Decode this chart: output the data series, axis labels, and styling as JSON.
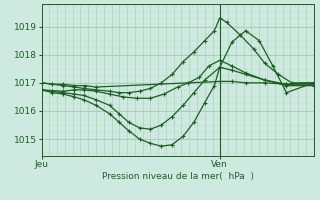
{
  "bg_color": "#ceeae0",
  "grid_color_major": "#a8c8b8",
  "grid_color_minor": "#b8d8c8",
  "line_color": "#1a6020",
  "xlabel": "Pression niveau de la mer(  hPa  )",
  "xtick_labels": [
    "Jeu",
    "Ven"
  ],
  "xtick_positions": [
    0.0,
    0.655
  ],
  "vline_x": 0.655,
  "ylabel_ticks": [
    1015,
    1016,
    1017,
    1018,
    1019
  ],
  "ylim": [
    1014.4,
    1019.8
  ],
  "xlim": [
    0.0,
    1.0
  ],
  "lines": [
    {
      "x": [
        0.0,
        0.04,
        0.08,
        0.12,
        0.16,
        0.2,
        0.655,
        0.7,
        0.75,
        0.82,
        0.9,
        1.0
      ],
      "y": [
        1017.0,
        1016.95,
        1016.95,
        1016.9,
        1016.9,
        1016.85,
        1017.05,
        1017.05,
        1017.0,
        1017.0,
        1016.95,
        1017.0
      ]
    },
    {
      "x": [
        0.0,
        0.04,
        0.08,
        0.12,
        0.155,
        0.2,
        0.25,
        0.3,
        0.35,
        0.4,
        0.45,
        0.5,
        0.54,
        0.58,
        0.615,
        0.655,
        0.7,
        0.75,
        0.82,
        0.9,
        1.0
      ],
      "y": [
        1016.75,
        1016.72,
        1016.7,
        1016.75,
        1016.75,
        1016.7,
        1016.6,
        1016.5,
        1016.45,
        1016.45,
        1016.6,
        1016.85,
        1017.0,
        1017.2,
        1017.6,
        1017.8,
        1017.6,
        1017.35,
        1017.1,
        1016.95,
        1016.95
      ]
    },
    {
      "x": [
        0.0,
        0.04,
        0.08,
        0.12,
        0.155,
        0.2,
        0.25,
        0.285,
        0.32,
        0.36,
        0.4,
        0.44,
        0.48,
        0.52,
        0.56,
        0.6,
        0.655,
        0.7,
        0.75,
        0.82,
        0.9,
        1.0
      ],
      "y": [
        1016.75,
        1016.7,
        1016.65,
        1016.6,
        1016.55,
        1016.4,
        1016.2,
        1015.9,
        1015.6,
        1015.4,
        1015.35,
        1015.5,
        1015.8,
        1016.2,
        1016.65,
        1017.1,
        1017.55,
        1017.45,
        1017.3,
        1017.1,
        1016.9,
        1016.9
      ]
    },
    {
      "x": [
        0.0,
        0.04,
        0.08,
        0.12,
        0.155,
        0.2,
        0.25,
        0.285,
        0.32,
        0.36,
        0.4,
        0.44,
        0.48,
        0.52,
        0.56,
        0.6,
        0.635,
        0.655,
        0.68,
        0.73,
        0.78,
        0.82,
        0.87,
        0.92,
        1.0
      ],
      "y": [
        1017.0,
        1016.95,
        1016.9,
        1016.85,
        1016.8,
        1016.75,
        1016.7,
        1016.65,
        1016.65,
        1016.7,
        1016.8,
        1017.0,
        1017.3,
        1017.75,
        1018.1,
        1018.5,
        1018.85,
        1019.3,
        1019.15,
        1018.7,
        1018.2,
        1017.7,
        1017.3,
        1017.0,
        1017.0
      ]
    },
    {
      "x": [
        0.0,
        0.04,
        0.08,
        0.12,
        0.155,
        0.2,
        0.25,
        0.285,
        0.32,
        0.36,
        0.4,
        0.44,
        0.48,
        0.52,
        0.56,
        0.6,
        0.635,
        0.655,
        0.7,
        0.75,
        0.8,
        0.85,
        0.9,
        1.0
      ],
      "y": [
        1016.75,
        1016.65,
        1016.6,
        1016.5,
        1016.4,
        1016.2,
        1015.9,
        1015.6,
        1015.3,
        1015.0,
        1014.85,
        1014.75,
        1014.8,
        1015.1,
        1015.6,
        1016.3,
        1016.9,
        1017.55,
        1018.45,
        1018.85,
        1018.5,
        1017.6,
        1016.65,
        1017.0
      ]
    }
  ]
}
